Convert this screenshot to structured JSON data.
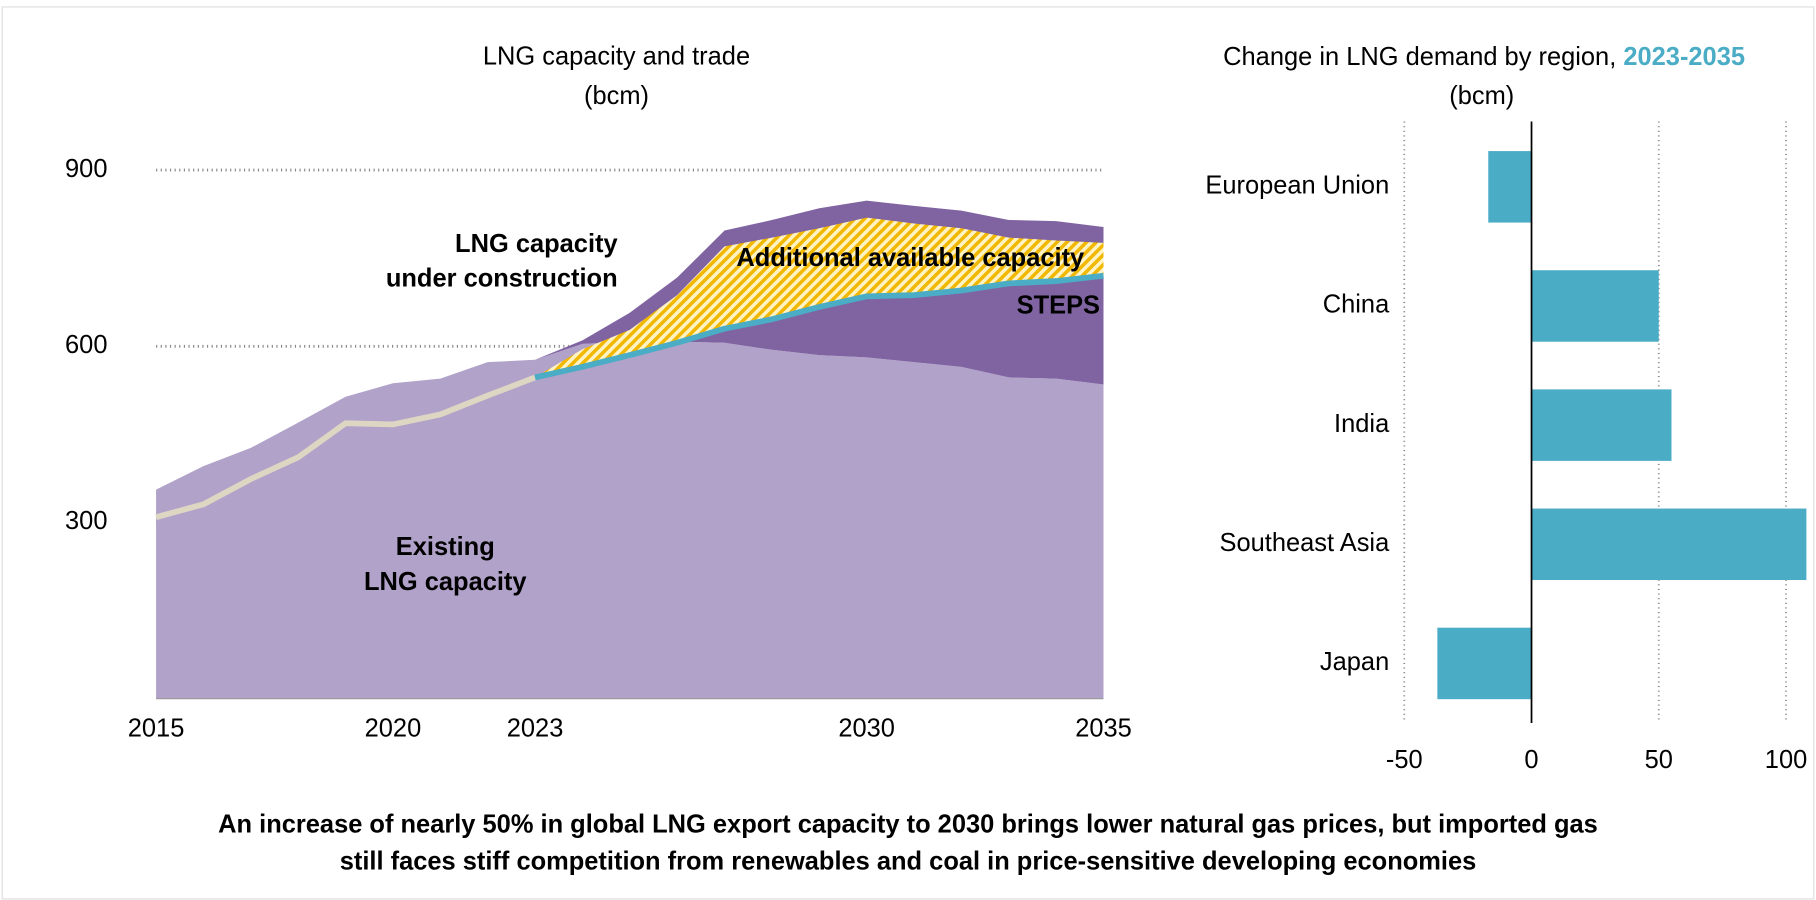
{
  "chart_data": [
    {
      "type": "area",
      "title": "LNG capacity and trade",
      "subtitle": "(bcm)",
      "x": [
        2015,
        2016,
        2017,
        2018,
        2019,
        2020,
        2021,
        2022,
        2023,
        2024,
        2025,
        2026,
        2027,
        2028,
        2029,
        2030,
        2031,
        2032,
        2033,
        2034,
        2035
      ],
      "xlim": [
        2015,
        2035
      ],
      "xticks": [
        2015,
        2020,
        2023,
        2030,
        2035
      ],
      "ylim": [
        0,
        900
      ],
      "yticks": [
        300,
        600,
        900
      ],
      "grid": true,
      "series": [
        {
          "name": [
            "Existing",
            "LNG capacity"
          ],
          "kind": "area",
          "color": "#b1a2c9",
          "label_color": "#ffffff",
          "values": [
            356,
            396,
            427,
            470,
            514,
            537,
            545,
            573,
            577,
            604,
            608,
            608,
            606,
            594,
            585,
            581,
            573,
            565,
            547,
            545,
            535
          ]
        },
        {
          "name": [
            "LNG capacity",
            "under construction"
          ],
          "kind": "area",
          "stack_on": 0,
          "color": "#8064a2",
          "label_color": "#8064a2",
          "values": [
            0,
            0,
            0,
            0,
            0,
            0,
            0,
            0,
            0,
            6,
            49,
            109,
            191,
            221,
            250,
            267,
            266,
            266,
            268,
            268,
            268
          ]
        },
        {
          "name": [
            "Additional available capacity"
          ],
          "kind": "hatch",
          "stack_on": 4,
          "color": "#f2b800",
          "label_color": "#e8781e",
          "values": [
            null,
            null,
            null,
            null,
            null,
            null,
            null,
            null,
            0,
            30,
            43,
            81,
            140,
            139,
            134,
            134,
            122,
            106,
            78,
            69,
            56
          ]
        },
        {
          "kind": "line",
          "color": "#ddd6c3",
          "values": [
            309,
            331,
            374,
            411,
            469,
            467,
            484,
            516,
            547,
            null,
            null,
            null,
            null,
            null,
            null,
            null,
            null,
            null,
            null,
            null,
            null
          ]
        },
        {
          "name": [
            "STEPS"
          ],
          "kind": "line",
          "color": "#4bacc6",
          "label_color": "#4bacc6",
          "values": [
            null,
            null,
            null,
            null,
            null,
            null,
            null,
            null,
            547,
            565,
            585,
            606,
            630,
            646,
            667,
            685,
            687,
            695,
            707,
            711,
            720
          ]
        }
      ]
    },
    {
      "type": "bar",
      "orientation": "horizontal",
      "title": "Change in LNG demand by region,",
      "title_highlight": "2023-2035",
      "subtitle": "(bcm)",
      "categories": [
        "European Union",
        "China",
        "India",
        "Southeast Asia",
        "Japan"
      ],
      "values": [
        -17,
        50,
        55,
        108,
        -37
      ],
      "color": "#4bacc6",
      "xlim": [
        -50,
        110
      ],
      "xticks": [
        -50,
        0,
        50,
        100
      ],
      "grid": true
    }
  ],
  "caption": [
    "An increase of nearly 50% in global LNG export capacity to 2030 brings lower natural gas prices, but imported gas",
    "still faces stiff competition from renewables and coal in price-sensitive developing economies"
  ]
}
